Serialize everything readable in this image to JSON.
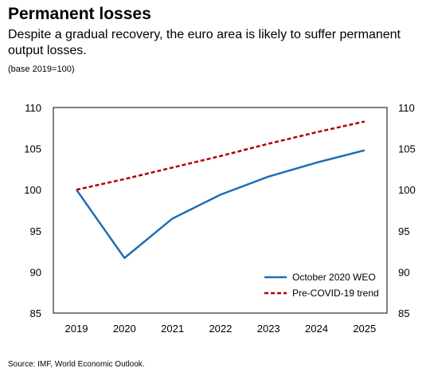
{
  "title": "Permanent losses",
  "subtitle": "Despite a gradual recovery, the euro area is likely to suffer permanent output losses.",
  "note": "(base 2019=100)",
  "source": "Source: IMF, World Economic Outlook.",
  "chart_data": {
    "type": "line",
    "x": [
      "2019",
      "2020",
      "2021",
      "2022",
      "2023",
      "2024",
      "2025"
    ],
    "series": [
      {
        "name": "October 2020 WEO",
        "values": [
          100,
          91.7,
          96.5,
          99.4,
          101.6,
          103.3,
          104.8
        ],
        "color": "#1f6eb4",
        "style": "solid"
      },
      {
        "name": "Pre-COVID-19 trend",
        "values": [
          100,
          101.3,
          102.7,
          104.1,
          105.6,
          107.0,
          108.3
        ],
        "color": "#b00000",
        "style": "dashed"
      }
    ],
    "ylim": [
      85,
      110
    ],
    "yticks": [
      "85",
      "90",
      "95",
      "100",
      "105",
      "110"
    ],
    "grid": false,
    "legend_position": "bottom-right"
  }
}
